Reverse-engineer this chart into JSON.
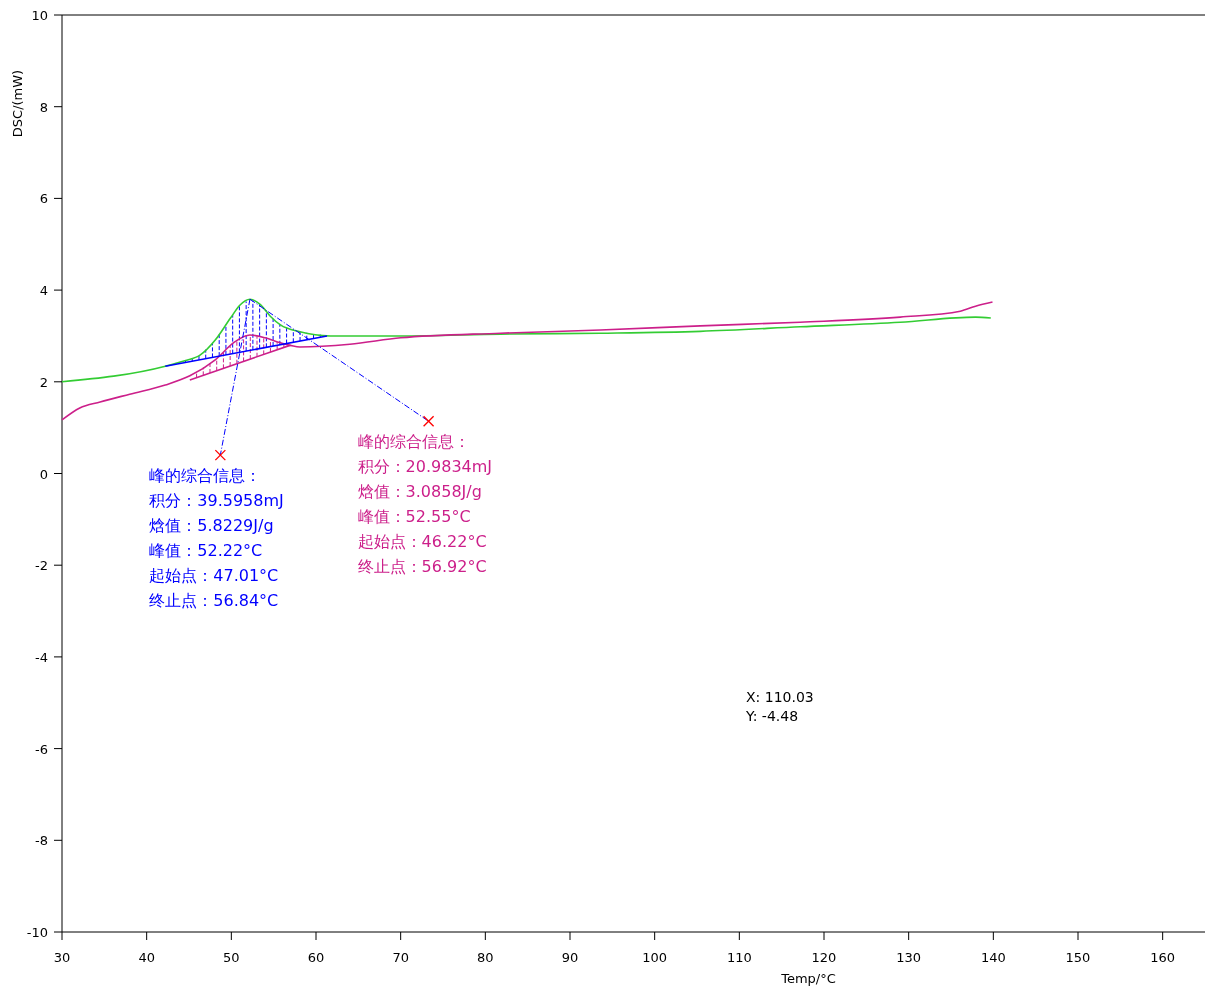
{
  "chart_data": {
    "type": "line",
    "xlabel": "Temp/°C",
    "ylabel": "DSC/(mW)",
    "xlim": [
      30,
      165
    ],
    "ylim": [
      -10,
      10
    ],
    "xticks": [
      30,
      40,
      50,
      60,
      70,
      80,
      90,
      100,
      110,
      120,
      130,
      140,
      150,
      160
    ],
    "yticks": [
      -10,
      -8,
      -6,
      -4,
      -2,
      0,
      2,
      4,
      6,
      8,
      10
    ],
    "grid": false,
    "line_style": "solid",
    "series": [
      {
        "color": "#33cc33",
        "x": [
          30,
          42.2,
          44.5,
          46.3,
          48.1,
          49.9,
          51,
          52.2,
          53.4,
          54.6,
          55.8,
          58.1,
          61.7,
          70,
          81.8,
          93.6,
          105.4,
          117.2,
          129,
          137.9,
          139.7
        ],
        "values": [
          2.0,
          2.34,
          2.46,
          2.58,
          2.91,
          3.39,
          3.67,
          3.8,
          3.69,
          3.43,
          3.24,
          3.09,
          3.0,
          3.0,
          3.04,
          3.06,
          3.1,
          3.2,
          3.3,
          3.41,
          3.39
        ]
      },
      {
        "color": "#cc1f8a",
        "x": [
          30,
          32.1,
          34.5,
          38,
          42.2,
          45.1,
          48.1,
          50.4,
          52.2,
          54,
          55.8,
          58.1,
          64,
          70,
          81.8,
          93.6,
          105.4,
          117.2,
          129,
          136.1,
          137.9,
          139.9
        ],
        "values": [
          1.17,
          1.43,
          1.56,
          1.73,
          1.93,
          2.13,
          2.48,
          2.87,
          3.02,
          2.96,
          2.85,
          2.76,
          2.82,
          2.96,
          3.06,
          3.13,
          3.22,
          3.3,
          3.41,
          3.54,
          3.65,
          3.74
        ]
      },
      {
        "type": "line",
        "color": "#0000ff",
        "x": [
          42.2,
          61.3
        ],
        "values": [
          2.34,
          3.0
        ]
      },
      {
        "type": "line",
        "color": "#cc1f8a",
        "x": [
          45.1,
          57
        ],
        "values": [
          2.04,
          2.8
        ]
      }
    ],
    "annotations": [
      "X: 110.03",
      "Y: -4.48",
      {
        "text": "峰的综合信息：",
        "x": 48.7,
        "y": 0.4
      },
      "积分：39.5958mJ",
      "焓值：5.8229J/g",
      "峰值：52.22°C",
      "起始点：47.01°C",
      "终止点：56.84°C",
      {
        "text": "峰的综合信息：",
        "x": 73.3,
        "y": 1.14
      },
      "积分：20.9834mJ",
      "焓值：3.0858J/g",
      "峰值：52.55°C",
      "起始点：46.22°C",
      "终止点：56.92°C"
    ]
  }
}
